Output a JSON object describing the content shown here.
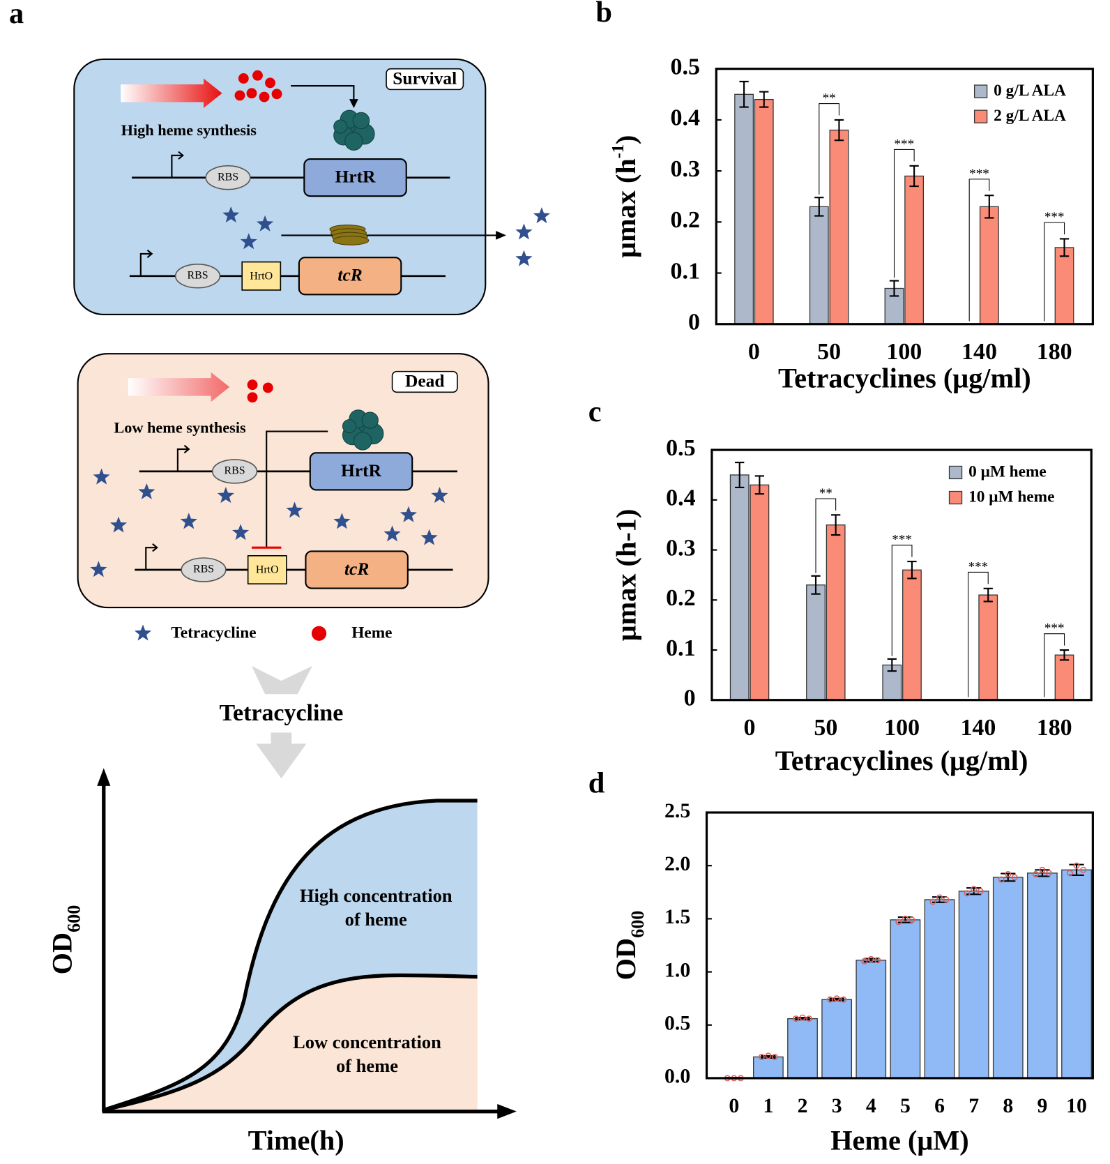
{
  "panel_labels": [
    "a",
    "b",
    "c",
    "d"
  ],
  "diagram": {
    "survival_panel": {
      "status": "Survival",
      "synthesis": "High heme synthesis",
      "labels": [
        "RBS",
        "HrtR",
        "RBS",
        "HrtO",
        "tcR"
      ]
    },
    "dead_panel": {
      "status": "Dead",
      "synthesis": "Low heme synthesis",
      "labels": [
        "RBS",
        "HrtR",
        "RBS",
        "HrtO",
        "tcR"
      ]
    },
    "legend": [
      "Tetracycline",
      "Heme"
    ],
    "arrow_label": "Tetracycline",
    "growth_plot": {
      "y_label": {
        "main": "OD",
        "sub": "600"
      },
      "x_label": "Time(h)",
      "high_label": [
        "High concentration",
        "of heme"
      ],
      "low_label": [
        "Low concentration",
        "of heme"
      ]
    }
  },
  "chart_data": [
    {
      "type": "bar",
      "x_label": "Tetracyclines (μg/ml)",
      "y_label": {
        "main": "μmax (h",
        "sup": "-1",
        "end": ")"
      },
      "categories": [
        "0",
        "50",
        "100",
        "140",
        "180"
      ],
      "series": [
        {
          "name": "0 g/L ALA",
          "color": "#adb9ca",
          "values": [
            0.45,
            0.23,
            0.07,
            0,
            0
          ],
          "errors": [
            0.025,
            0.018,
            0.015,
            0,
            0
          ]
        },
        {
          "name": "2 g/L ALA",
          "color": "#f98b77",
          "values": [
            0.44,
            0.38,
            0.29,
            0.23,
            0.15
          ],
          "errors": [
            0.015,
            0.02,
            0.02,
            0.022,
            0.017
          ]
        }
      ],
      "significance": [
        null,
        "**",
        "***",
        "***",
        "***"
      ],
      "ylim": [
        0,
        0.5
      ],
      "yticks": [
        0,
        0.1,
        0.2,
        0.3,
        0.4,
        0.5
      ],
      "legend": "upper right"
    },
    {
      "type": "bar",
      "x_label": "Tetracyclines (μg/ml)",
      "y_label": "μmax (h-1)",
      "categories": [
        "0",
        "50",
        "100",
        "140",
        "180"
      ],
      "series": [
        {
          "name": "0 μM heme",
          "color": "#adb9ca",
          "values": [
            0.45,
            0.23,
            0.07,
            0,
            0
          ],
          "errors": [
            0.025,
            0.018,
            0.012,
            0,
            0
          ]
        },
        {
          "name": "10 μM heme",
          "color": "#f98b77",
          "values": [
            0.43,
            0.35,
            0.26,
            0.21,
            0.09
          ],
          "errors": [
            0.018,
            0.02,
            0.017,
            0.013,
            0.01
          ]
        }
      ],
      "significance": [
        null,
        "**",
        "***",
        "***",
        "***"
      ],
      "ylim": [
        0,
        0.5
      ],
      "yticks": [
        0,
        0.1,
        0.2,
        0.3,
        0.4,
        0.5
      ],
      "legend": "upper right"
    },
    {
      "type": "bar",
      "x_label": "Heme (μM)",
      "y_label": {
        "main": "OD",
        "sub": "600"
      },
      "categories": [
        "0",
        "1",
        "2",
        "3",
        "4",
        "5",
        "6",
        "7",
        "8",
        "9",
        "10"
      ],
      "series": [
        {
          "color": "#8fbaf5",
          "values": [
            0,
            0.2,
            0.56,
            0.74,
            1.11,
            1.49,
            1.68,
            1.76,
            1.89,
            1.93,
            1.96
          ],
          "errors": [
            0.005,
            0.01,
            0.01,
            0.01,
            0.015,
            0.025,
            0.025,
            0.03,
            0.035,
            0.03,
            0.05
          ],
          "points": [
            [
              0,
              0,
              0
            ],
            [
              0.2,
              0.21,
              0.2
            ],
            [
              0.56,
              0.57,
              0.56
            ],
            [
              0.74,
              0.75,
              0.74
            ],
            [
              1.1,
              1.12,
              1.11
            ],
            [
              1.47,
              1.5,
              1.49
            ],
            [
              1.66,
              1.7,
              1.68
            ],
            [
              1.74,
              1.78,
              1.76
            ],
            [
              1.87,
              1.92,
              1.89
            ],
            [
              1.92,
              1.96,
              1.93
            ],
            [
              1.93,
              2.0,
              1.96
            ]
          ]
        }
      ],
      "ylim": [
        0,
        2.5
      ],
      "yticks": [
        {
          "value": 0,
          "label": "0.0"
        },
        0.5,
        {
          "value": 1,
          "label": "1.0"
        },
        1.5,
        {
          "value": 2,
          "label": "2.0"
        },
        2.5
      ]
    }
  ]
}
